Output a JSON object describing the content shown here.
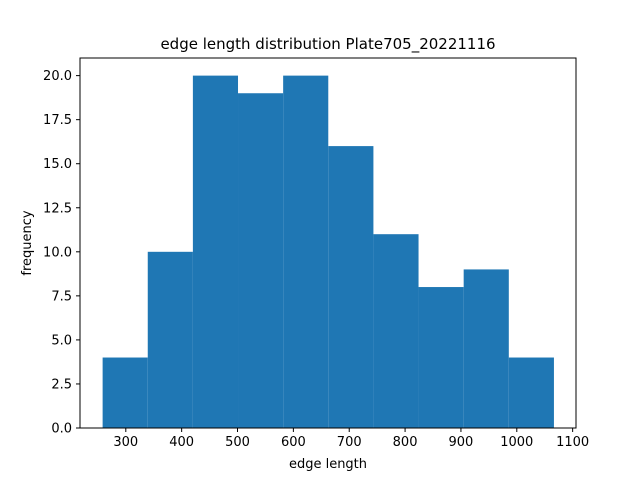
{
  "chart_data": {
    "type": "bar",
    "title": "edge length distribution Plate705_20221116",
    "xlabel": "edge length",
    "ylabel": "frequency",
    "bin_edges": [
      258.5,
      339.3,
      420.1,
      500.9,
      581.7,
      662.5,
      743.3,
      824.1,
      904.9,
      985.7,
      1066.5
    ],
    "values": [
      4,
      10,
      20,
      19,
      20,
      16,
      11,
      8,
      9,
      4
    ],
    "xlim": [
      218,
      1106
    ],
    "ylim": [
      0,
      21
    ],
    "xticks": [
      300,
      400,
      500,
      600,
      700,
      800,
      900,
      1000,
      1100
    ],
    "xtick_labels": [
      "300",
      "400",
      "500",
      "600",
      "700",
      "800",
      "900",
      "1000",
      "1100"
    ],
    "yticks": [
      0,
      2.5,
      5,
      7.5,
      10,
      12.5,
      15,
      17.5,
      20
    ],
    "ytick_labels": [
      "0.0",
      "2.5",
      "5.0",
      "7.5",
      "10.0",
      "12.5",
      "15.0",
      "17.5",
      "20.0"
    ],
    "bar_color": "#1f77b4",
    "grid": false,
    "legend": false
  }
}
